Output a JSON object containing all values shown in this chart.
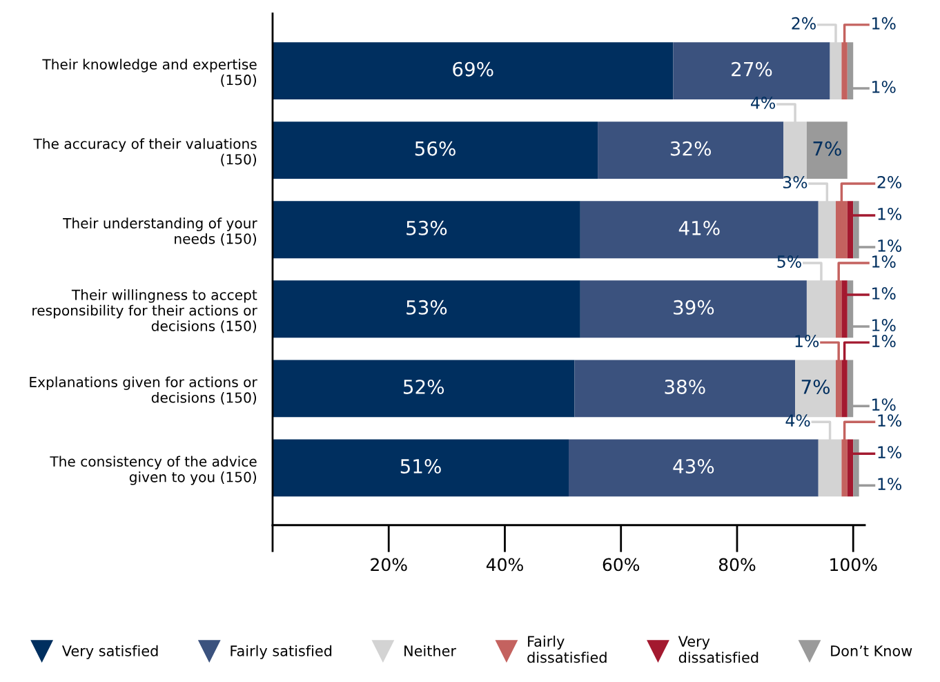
{
  "chart_data": {
    "type": "bar",
    "orientation": "horizontal",
    "stacked": true,
    "legend": "bottom",
    "grid": false,
    "categories": [
      "Their knowledge and expertise\n(150)",
      "The accuracy of their valuations\n(150)",
      "Their understanding of your\nneeds (150)",
      "Their willingness to accept\nresponsibility for their actions or\ndecisions (150)",
      "Explanations given for actions or\ndecisions (150)",
      "The consistency of the advice\ngiven to you (150)"
    ],
    "xlim": [
      0,
      102
    ],
    "xticks": [
      {
        "value": 0,
        "label": null
      },
      {
        "value": 20,
        "label": "20%"
      },
      {
        "value": 40,
        "label": "40%"
      },
      {
        "value": 60,
        "label": "60%"
      },
      {
        "value": 80,
        "label": "80%"
      },
      {
        "value": 100,
        "label": "100%"
      }
    ],
    "series": [
      {
        "name": "Very satisfied",
        "color": "#002f5f",
        "values": [
          69,
          56,
          53,
          53,
          52,
          51
        ],
        "value_labels": [
          "69%",
          "56%",
          "53%",
          "53%",
          "52%",
          "51%"
        ]
      },
      {
        "name": "Fairly satisfied",
        "color": "#3b527e",
        "values": [
          27,
          32,
          41,
          39,
          38,
          43
        ],
        "value_labels": [
          "27%",
          "32%",
          "41%",
          "39%",
          "38%",
          "43%"
        ]
      },
      {
        "name": "Neither",
        "color": "#d3d3d3",
        "values": [
          2,
          4,
          3,
          5,
          7,
          4
        ],
        "value_labels": [
          "2%",
          "4%",
          "3%",
          "5%",
          "7%",
          "4%"
        ]
      },
      {
        "name": "Fairly\ndissatisfied",
        "color": "#c4625f",
        "values": [
          1,
          null,
          2,
          1,
          1,
          1
        ],
        "value_labels": [
          "1%",
          null,
          "2%",
          "1%",
          "1%",
          "1%"
        ]
      },
      {
        "name": "Very\ndissatisfied",
        "color": "#a3192f",
        "values": [
          null,
          null,
          1,
          1,
          1,
          1
        ],
        "value_labels": [
          null,
          null,
          "1%",
          "1%",
          "1%",
          "1%"
        ]
      },
      {
        "name": "Don’t Know",
        "color": "#9a9a9a",
        "values": [
          1,
          7,
          1,
          1,
          1,
          1
        ],
        "value_labels": [
          "1%",
          "7%",
          "1%",
          "1%",
          "1%",
          "1%"
        ]
      }
    ]
  }
}
